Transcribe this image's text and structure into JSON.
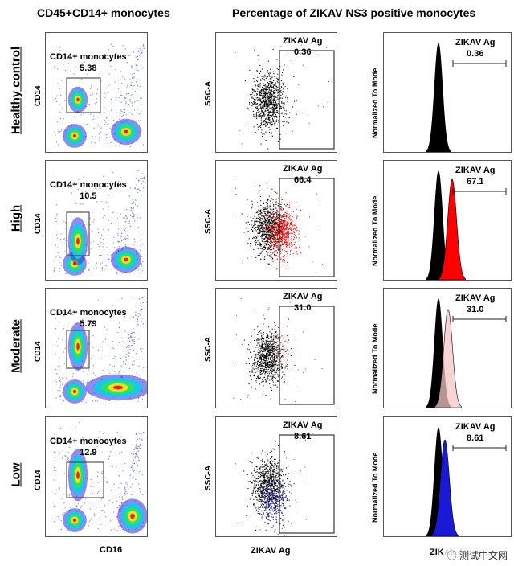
{
  "headers": {
    "left": "CD45+CD14+ monocytes",
    "right": "Percentage of ZIKAV NS3 positive monocytes"
  },
  "axis_labels": {
    "cd14": "CD14",
    "ssc": "SSC-A",
    "normalized": "Normalized To Mode",
    "cd16": "CD16",
    "zikav": "ZIKAV Ag"
  },
  "gate_labels": {
    "monocytes": "CD14+ monocytes",
    "zikav": "ZIKAV Ag"
  },
  "rows": [
    {
      "label": "Healthy control",
      "monocyte_pct": "5.38",
      "zikav_dot_pct": "0.36",
      "zikav_hist_pct": "0.36",
      "overlay_color": "#000000"
    },
    {
      "label": "High",
      "monocyte_pct": "10.5",
      "zikav_dot_pct": "66.4",
      "zikav_hist_pct": "67.1",
      "overlay_color": "#ff0000"
    },
    {
      "label": "Moderate",
      "monocyte_pct": "5.79",
      "zikav_dot_pct": "31.0",
      "zikav_hist_pct": "31.0",
      "overlay_color": "#f6c6c6"
    },
    {
      "label": "Low",
      "monocyte_pct": "12.9",
      "zikav_dot_pct": "8.61",
      "zikav_hist_pct": "8.61",
      "overlay_color": "#1a1ad6"
    }
  ],
  "watermark": "测试中文网",
  "watermark_icon": "wechat-icon"
}
